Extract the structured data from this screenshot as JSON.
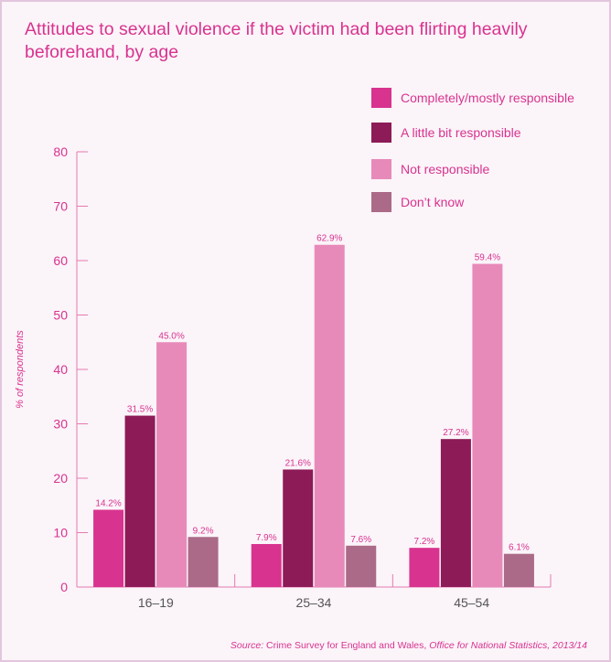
{
  "chart_data": {
    "type": "bar",
    "title": "Attitudes to sexual violence if the victim had been flirting heavily beforehand, by age",
    "ylabel": "% of respondents",
    "xlabel": "",
    "ylim": [
      0,
      80
    ],
    "yticks": [
      "0",
      "10",
      "20",
      "30",
      "40",
      "50",
      "60",
      "70",
      "80"
    ],
    "grid": false,
    "legend_position": "top-right",
    "categories": [
      "16–19",
      "25–34",
      "45–54"
    ],
    "series": [
      {
        "name": "Completely/mostly responsible",
        "color": "#d8338f",
        "values": [
          14.2,
          7.9,
          7.2
        ],
        "labels": [
          "14.2%",
          "7.9%",
          "7.2%"
        ]
      },
      {
        "name": "A little bit responsible",
        "color": "#8c1b57",
        "values": [
          31.5,
          21.6,
          27.2
        ],
        "labels": [
          "31.5%",
          "21.6%",
          "27.2%"
        ]
      },
      {
        "name": "Not responsible",
        "color": "#e78ab9",
        "values": [
          45.0,
          62.9,
          59.4
        ],
        "labels": [
          "45.0%",
          "62.9%",
          "59.4%"
        ]
      },
      {
        "name": "Don’t know",
        "color": "#ab6a88",
        "values": [
          9.2,
          7.6,
          6.1
        ],
        "labels": [
          "9.2%",
          "7.6%",
          "6.1%"
        ]
      }
    ]
  },
  "source": {
    "prefix": "Source:",
    "text1": "Crime Survey for England and Wales,",
    "text2": "Office for National Statistics, 2013/14"
  },
  "colors": {
    "accent": "#d8338f",
    "axis": "#e67ab0",
    "background": "#fbf4f9",
    "border": "#e2c6dc"
  }
}
